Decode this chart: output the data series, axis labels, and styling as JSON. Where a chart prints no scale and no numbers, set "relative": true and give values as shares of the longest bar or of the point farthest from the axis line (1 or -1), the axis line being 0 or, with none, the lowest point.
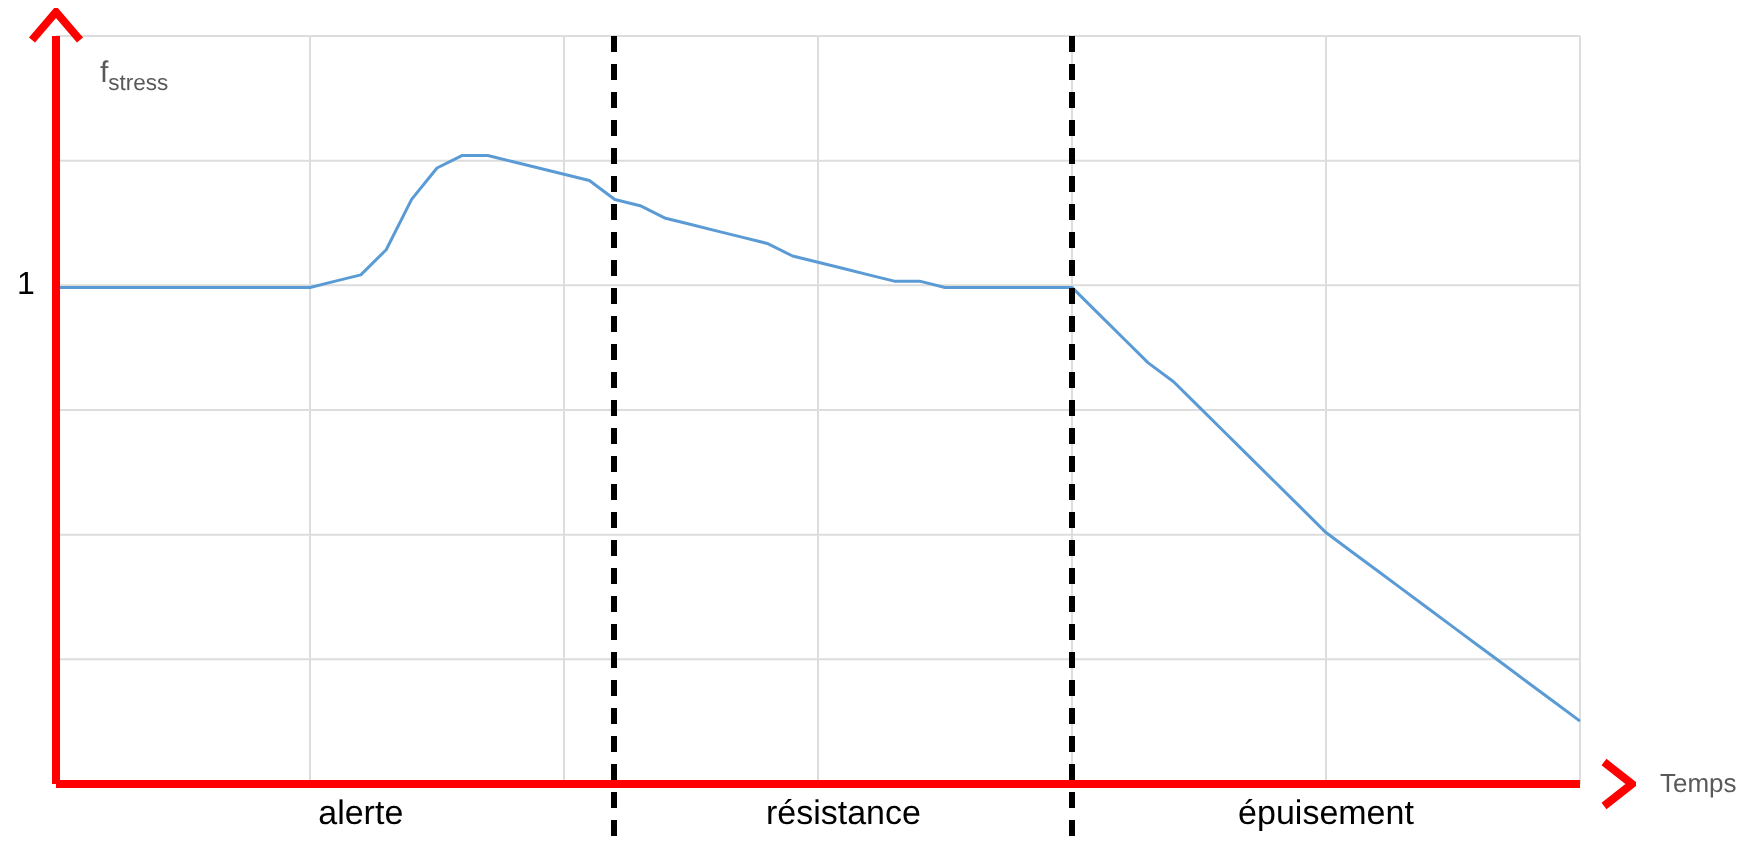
{
  "chart_data": {
    "type": "line",
    "ylabel": "f$_{stress}$",
    "xlabel": "Temps",
    "relative": true,
    "categories": [
      null,
      null,
      null,
      null,
      null,
      null,
      null,
      null,
      null,
      null,
      null,
      null,
      "alerte",
      null,
      null,
      null,
      null,
      null,
      null,
      null,
      null,
      null,
      null,
      null,
      null,
      null,
      null,
      null,
      null,
      null,
      null,
      "résistance",
      null,
      null,
      null,
      null,
      null,
      null,
      null,
      null,
      null,
      null,
      null,
      null,
      null,
      null,
      null,
      null,
      null,
      null,
      "épuisement",
      null,
      null,
      null,
      null,
      null,
      null,
      null,
      null,
      null,
      null
    ],
    "series": [
      {
        "color": "#5b9bd5",
        "values": [
          0.79,
          0.79,
          0.79,
          0.79,
          0.79,
          0.79,
          0.79,
          0.79,
          0.79,
          0.79,
          0.79,
          0.8,
          0.81,
          0.85,
          0.93,
          0.98,
          1,
          1,
          0.99,
          0.98,
          0.97,
          0.96,
          0.93,
          0.92,
          0.9,
          0.89,
          0.88,
          0.87,
          0.86,
          0.84,
          0.83,
          0.82,
          0.81,
          0.8,
          0.8,
          0.79,
          0.79,
          0.79,
          0.79,
          0.79,
          0.79,
          0.75,
          0.71,
          0.67,
          0.64,
          0.6,
          0.56,
          0.52,
          0.48,
          0.44,
          0.4,
          0.37,
          0.34,
          0.31,
          0.28,
          0.25,
          0.22,
          0.19,
          0.16,
          0.13,
          0.1
        ]
      }
    ],
    "tick_labels": "x",
    "grid": true,
    "marker": "none",
    "line_style": "solid",
    "annotations": [
      "1"
    ]
  }
}
